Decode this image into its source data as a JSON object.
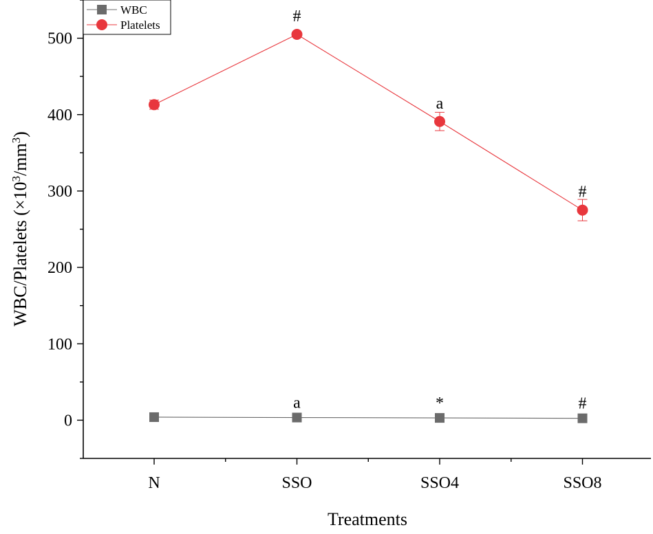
{
  "chart_data": {
    "type": "line",
    "categories": [
      "N",
      "SSO",
      "SSO4",
      "SSO8"
    ],
    "xlabel": "Treatments",
    "ylabel": {
      "prefix": "WBC/Platelets (×10",
      "exp1": "3",
      "mid": "/mm",
      "exp2": "3",
      "suffix": ")"
    },
    "ylim": [
      -50,
      550
    ],
    "yticks": [
      0,
      100,
      200,
      300,
      400,
      500
    ],
    "grid": false,
    "legend_position": "top-left",
    "series": [
      {
        "name": "WBC",
        "marker": "square",
        "color": "#6b6b6b",
        "values": [
          4,
          3.5,
          3,
          2.5
        ],
        "errors": [
          0.5,
          0.5,
          0.5,
          0.5
        ],
        "annotations": [
          "",
          "a",
          "*",
          "#"
        ]
      },
      {
        "name": "Platelets",
        "marker": "circle",
        "color": "#e8373d",
        "values": [
          413,
          505,
          391,
          275
        ],
        "errors": [
          6,
          3,
          12,
          14
        ],
        "annotations": [
          "",
          "#",
          "a",
          "#"
        ]
      }
    ]
  }
}
